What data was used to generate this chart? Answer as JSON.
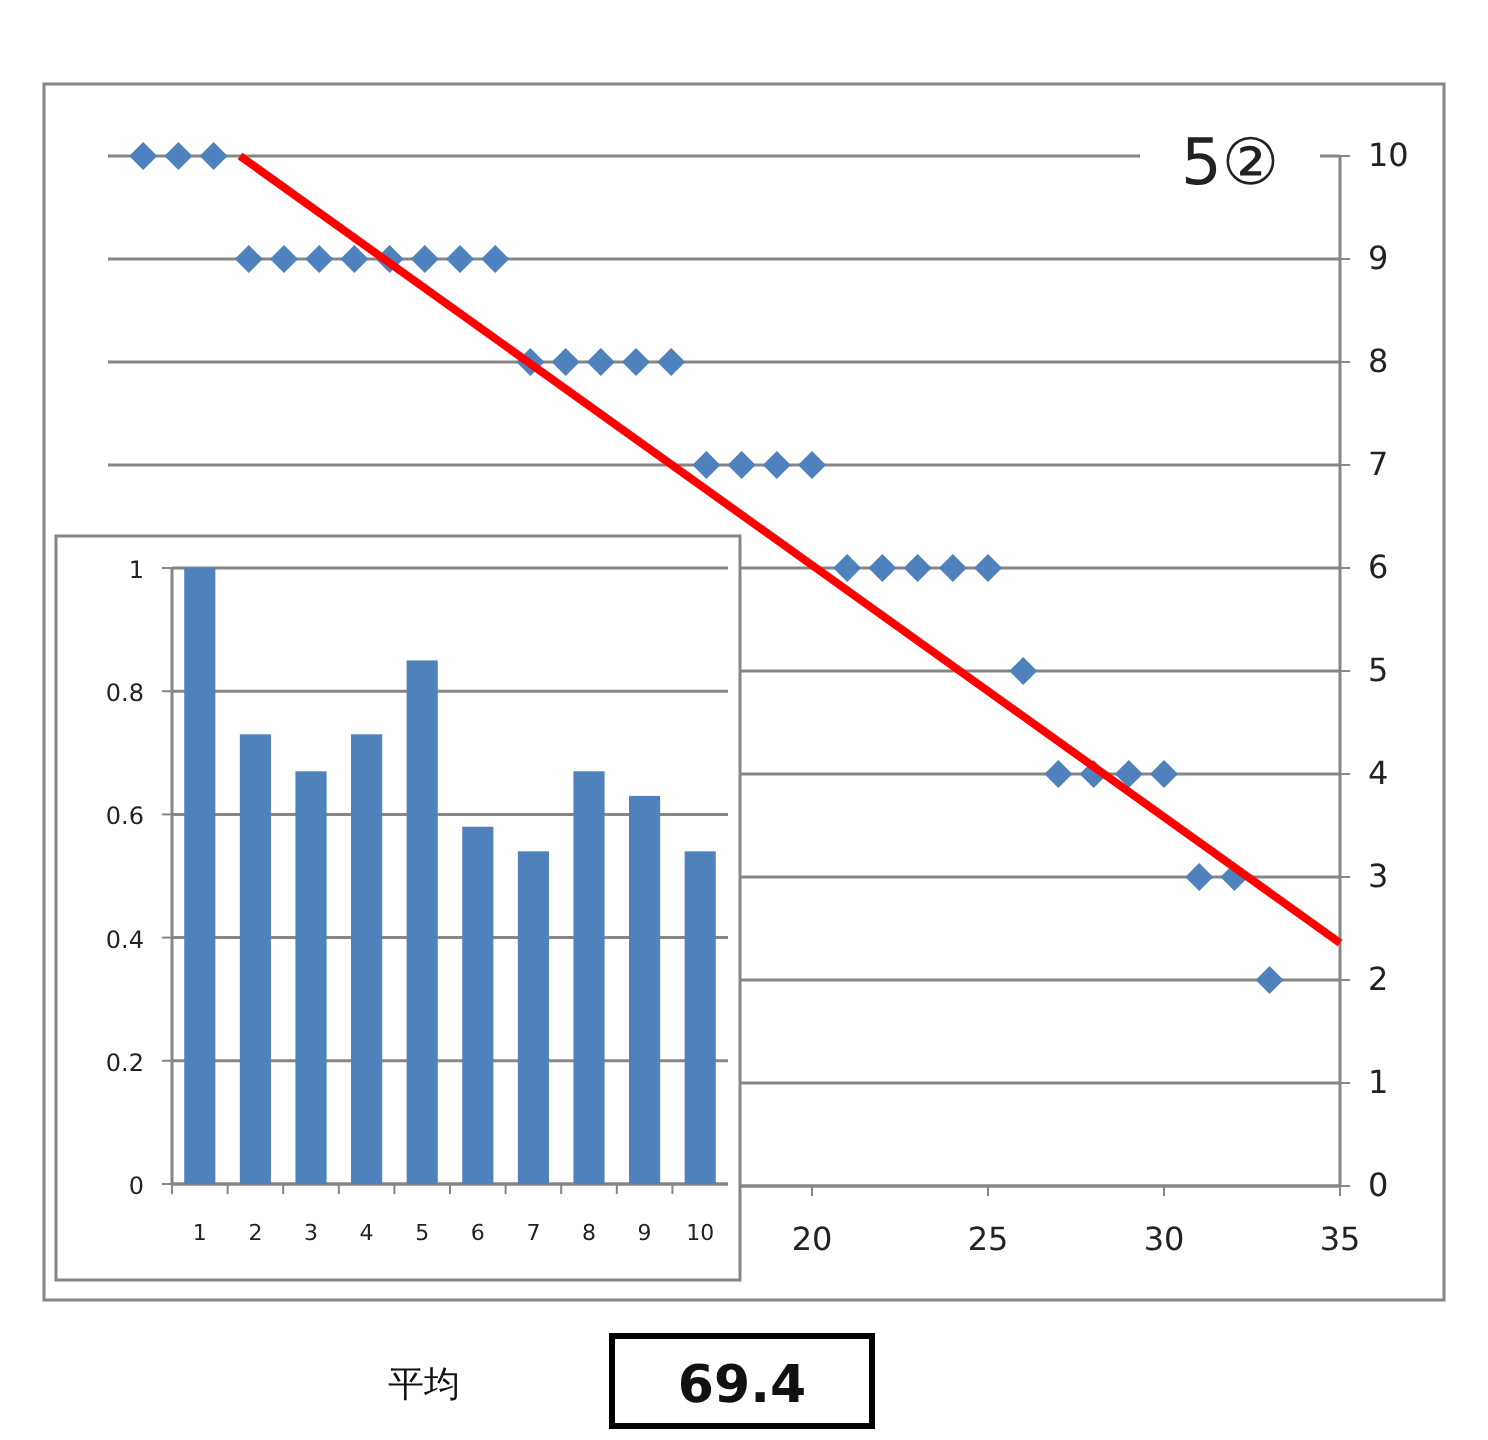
{
  "chart_data": [
    {
      "type": "scatter",
      "title": "5②",
      "xlim": [
        0,
        35
      ],
      "ylim": [
        0,
        10
      ],
      "xticks": [
        20,
        25,
        30,
        35
      ],
      "yticks": [
        0,
        1,
        2,
        3,
        4,
        5,
        6,
        7,
        8,
        9,
        10
      ],
      "grid": "y",
      "series": [
        {
          "type": "scatter",
          "marker": "diamond",
          "color": "#4f81bd",
          "x": [
            1,
            2,
            3,
            4,
            5,
            6,
            7,
            8,
            9,
            10,
            11,
            12,
            13,
            14,
            15,
            16,
            17,
            18,
            19,
            20,
            21,
            22,
            23,
            24,
            25,
            26,
            27,
            28,
            29,
            30,
            31,
            32,
            33
          ],
          "values": [
            10,
            10,
            10,
            9,
            9,
            9,
            9,
            9,
            9,
            9,
            9,
            8,
            8,
            8,
            8,
            8,
            7,
            7,
            7,
            7,
            6,
            6,
            6,
            6,
            6,
            5,
            4,
            4,
            4,
            4,
            3,
            3,
            2
          ]
        },
        {
          "type": "line",
          "marker": "none",
          "line_style": "solid",
          "color": "#ff0000",
          "x": [
            3.75,
            35
          ],
          "values": [
            10,
            2.36
          ]
        }
      ],
      "annotations": [
        "平均",
        "69.4"
      ]
    },
    {
      "type": "bar",
      "categories": [
        "1",
        "2",
        "3",
        "4",
        "5",
        "6",
        "7",
        "8",
        "9",
        "10"
      ],
      "values": [
        1,
        0.73,
        0.67,
        0.73,
        0.85,
        0.58,
        0.54,
        0.67,
        0.63,
        0.54
      ],
      "color": "#4f81bd",
      "ylim": [
        0,
        1
      ],
      "yticks": [
        0,
        0.2,
        0.4,
        0.6,
        0.8,
        1
      ],
      "grid": "y"
    }
  ]
}
